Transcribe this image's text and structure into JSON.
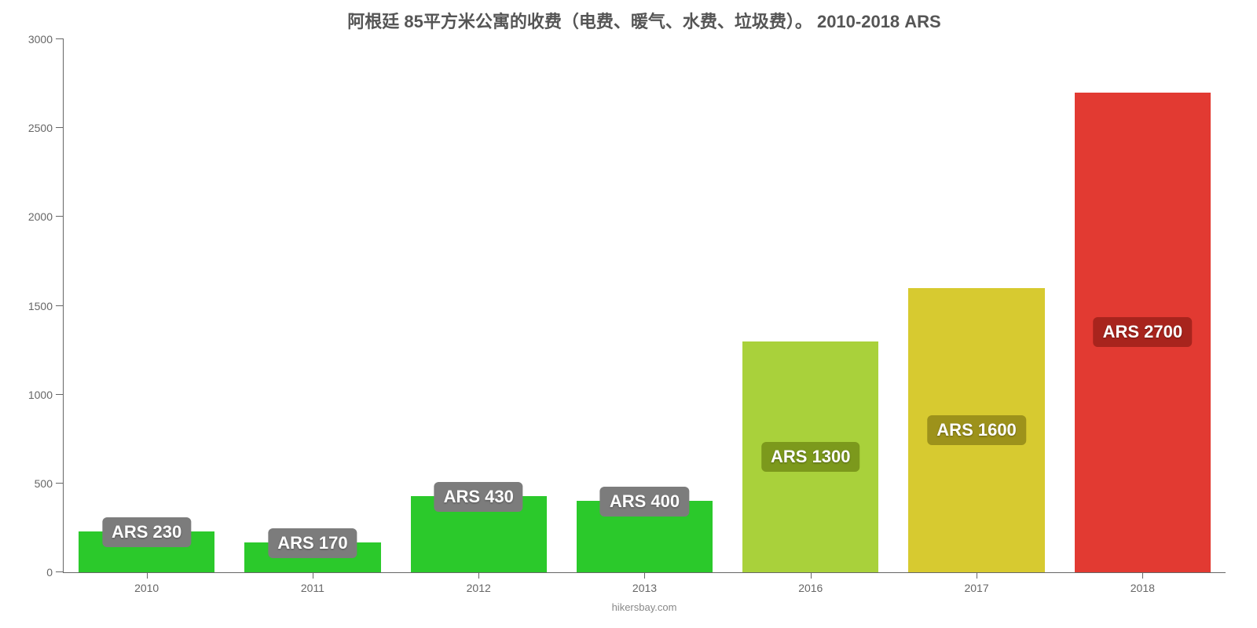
{
  "chart": {
    "type": "bar",
    "title": "阿根廷 85平方米公寓的收费（电费、暖气、水费、垃圾费）。 2010-2018 ARS",
    "title_fontsize": 22,
    "title_color": "#555555",
    "source": "hikersbay.com",
    "source_fontsize": 13,
    "source_color": "#888888",
    "background_color": "#ffffff",
    "axis_color": "#666666",
    "tick_label_fontsize": 14,
    "x_label_fontsize": 14,
    "ylim": [
      0,
      3000
    ],
    "ytick_step": 500,
    "y_ticks": [
      "0",
      "500",
      "1000",
      "1500",
      "2000",
      "2500",
      "3000"
    ],
    "bar_width_pct": 82,
    "badge_fontsize": 22,
    "badge_text_color": "#ffffff",
    "bars": [
      {
        "category": "2010",
        "value": 230,
        "label": "ARS 230",
        "fill": "#2bc92b",
        "badge_bg": "#7c7c7c",
        "badge_above": true
      },
      {
        "category": "2011",
        "value": 170,
        "label": "ARS 170",
        "fill": "#2bc92b",
        "badge_bg": "#7c7c7c",
        "badge_above": true
      },
      {
        "category": "2012",
        "value": 430,
        "label": "ARS 430",
        "fill": "#2bc92b",
        "badge_bg": "#7c7c7c",
        "badge_above": true
      },
      {
        "category": "2013",
        "value": 400,
        "label": "ARS 400",
        "fill": "#2bc92b",
        "badge_bg": "#7c7c7c",
        "badge_above": true
      },
      {
        "category": "2016",
        "value": 1300,
        "label": "ARS 1300",
        "fill": "#a9d13b",
        "badge_bg": "#7c991c",
        "badge_above": false
      },
      {
        "category": "2017",
        "value": 1600,
        "label": "ARS 1600",
        "fill": "#d7ca30",
        "badge_bg": "#9d921b",
        "badge_above": false
      },
      {
        "category": "2018",
        "value": 2700,
        "label": "ARS 2700",
        "fill": "#e23a32",
        "badge_bg": "#a8241d",
        "badge_above": false
      }
    ]
  }
}
